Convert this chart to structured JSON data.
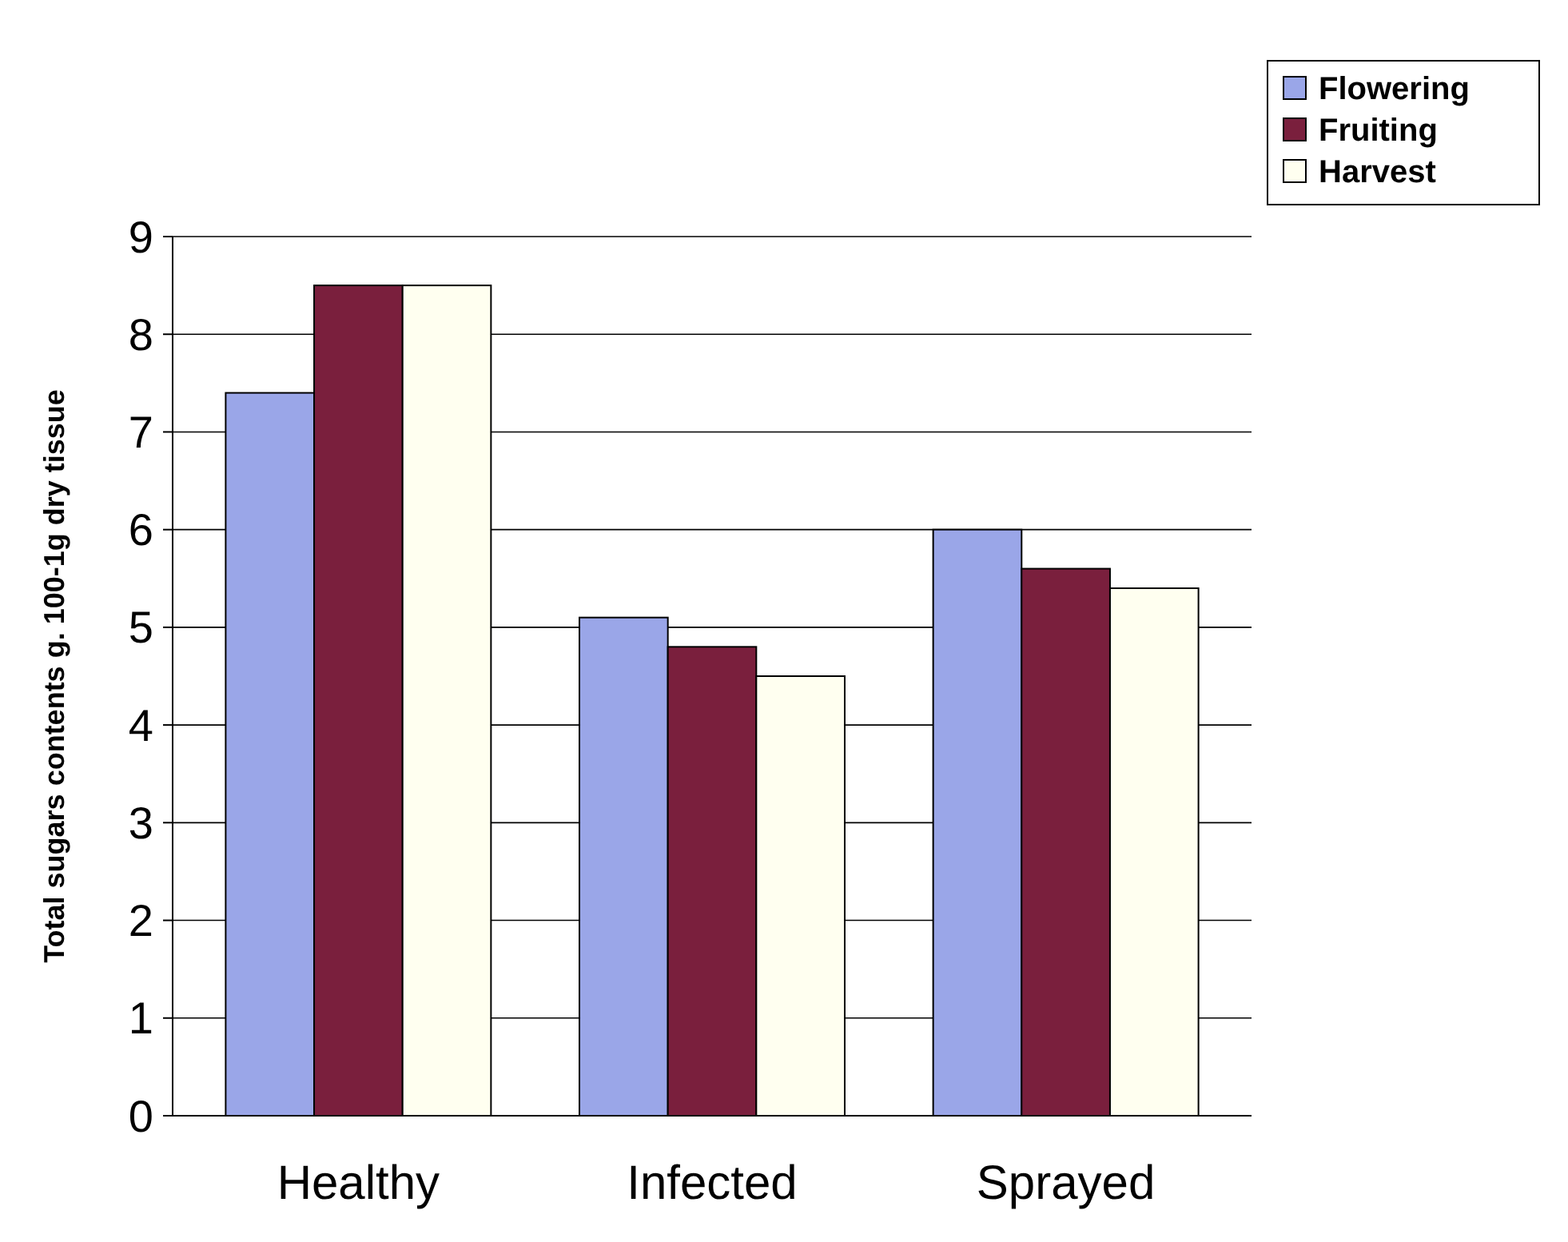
{
  "chart_data": {
    "type": "bar",
    "ylabel": "Total sugars contents g. 100-1g dry  tissue",
    "categories": [
      "Healthy",
      "Infected",
      "Sprayed"
    ],
    "series": [
      {
        "name": "Flowering",
        "color": "#9aa6e8",
        "values": [
          7.4,
          5.1,
          6.0
        ]
      },
      {
        "name": "Fruiting",
        "color": "#7a1f3d",
        "values": [
          8.5,
          4.8,
          5.6
        ]
      },
      {
        "name": "Harvest",
        "color": "#fffff0",
        "values": [
          8.5,
          4.5,
          5.4
        ]
      }
    ],
    "ylim": [
      0,
      9
    ],
    "yticks": [
      0,
      1,
      2,
      3,
      4,
      5,
      6,
      7,
      8,
      9
    ],
    "grid": "y",
    "legend": "top right"
  }
}
